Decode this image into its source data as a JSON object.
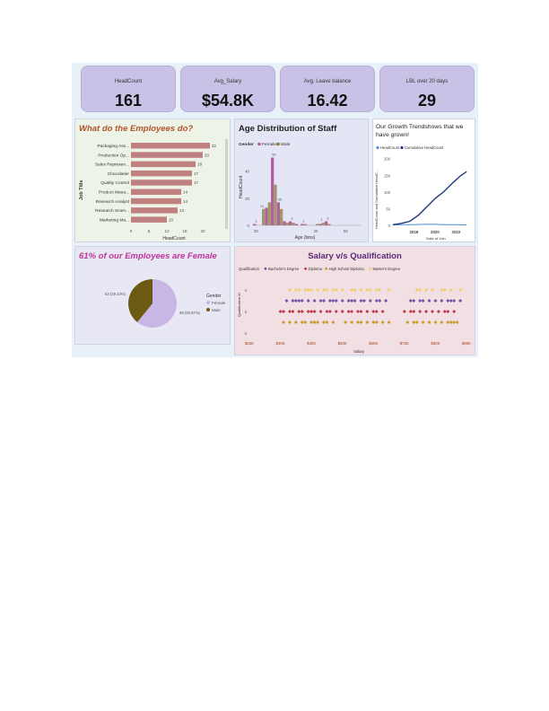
{
  "kpis": [
    {
      "label": "HeadCount",
      "value": "161"
    },
    {
      "label": "Avg_Salary",
      "value": "$54.8K"
    },
    {
      "label": "Avg. Leave balance",
      "value": "16.42"
    },
    {
      "label": "LBL over 20 days",
      "value": "29"
    }
  ],
  "colors": {
    "bar": "#c08080",
    "female": "#c8b7e6",
    "male": "#6b5a12",
    "male_bar": "#a3986a",
    "female_bar": "#b25fa0",
    "dot_bachelor": "#6b55a8",
    "dot_diploma": "#c0394b",
    "dot_highschool": "#c89a2a",
    "dot_masters": "#f0cf6a",
    "headcount_line": "#4a90d9",
    "cumulative_line": "#1f3a7a"
  },
  "chart_data": [
    {
      "type": "bar",
      "orientation": "horizontal",
      "title": "What do the Employees do?",
      "xlabel": "HeadCount",
      "ylabel": "Job Title",
      "categories": [
        "Packaging Ass...",
        "Production Op...",
        "Sales Represen...",
        "Chocolatier",
        "Quality Control",
        "Product Mana...",
        "Research Analyst",
        "Research Scien...",
        "Marketing Ma..."
      ],
      "values": [
        22,
        20,
        18,
        17,
        17,
        14,
        14,
        13,
        10
      ],
      "xticks": [
        "0",
        "5",
        "10",
        "15",
        "20"
      ],
      "xlim": [
        0,
        24
      ]
    },
    {
      "type": "bar",
      "title": "Age Distribution of Staff",
      "legend_title": "Gender",
      "xlabel": "Age (bins)",
      "ylabel": "HeadCount",
      "series": [
        {
          "name": "Female",
          "x": [
            20,
            22,
            24,
            26,
            28,
            30,
            32,
            34,
            36,
            38,
            40,
            42,
            44,
            46,
            48,
            50,
            52
          ],
          "values": [
            1,
            0,
            13,
            50,
            17,
            3,
            3,
            1,
            1,
            0,
            0,
            1,
            3,
            0,
            0,
            0,
            0
          ]
        },
        {
          "name": "Male",
          "x": [
            20,
            22,
            24,
            26,
            28,
            30,
            32,
            34,
            36,
            38,
            40,
            42,
            44,
            46,
            48,
            50,
            52
          ],
          "values": [
            0,
            12,
            17,
            30,
            12,
            2,
            2,
            0,
            1,
            0,
            1,
            2,
            1,
            0,
            0,
            0,
            0
          ]
        }
      ],
      "bar_labels": [
        "1",
        "12",
        "",
        "50",
        "30",
        "",
        "3",
        "",
        "1",
        "",
        "",
        "1",
        "3"
      ],
      "yticks": [
        "0",
        "20",
        "40"
      ],
      "xticks": [
        "20",
        "40",
        "50"
      ],
      "ylim": [
        0,
        55
      ],
      "xlim": [
        19,
        55
      ]
    },
    {
      "type": "line",
      "title": "Our Growth Trendshows that we have grown!",
      "xlabel": "Date of Join",
      "ylabel": "HeadCount and Cumulative HeadC...",
      "series": [
        {
          "name": "HeadCount",
          "x": [
            2016,
            2017,
            2018,
            2019,
            2020,
            2021,
            2022,
            2023
          ],
          "values": [
            1,
            2,
            2,
            3,
            3,
            2,
            2,
            1
          ]
        },
        {
          "name": "Cumulative HeadCount",
          "x": [
            2016,
            2016.8,
            2017.6,
            2018.4,
            2019.2,
            2020,
            2020.8,
            2021.6,
            2022.4,
            2023
          ],
          "values": [
            2,
            6,
            12,
            30,
            55,
            80,
            100,
            125,
            148,
            161
          ]
        }
      ],
      "xticks": [
        "2018",
        "2020",
        "2022"
      ],
      "yticks": [
        "0",
        "50",
        "100",
        "150",
        "200"
      ],
      "ylim": [
        0,
        210
      ],
      "xlim": [
        2016,
        2023.5
      ]
    },
    {
      "type": "pie",
      "title": "61% of our Employees are Female",
      "legend_title": "Gender",
      "labels": [
        "Female",
        "Male"
      ],
      "values": [
        98,
        63
      ],
      "slice_labels": [
        "98 (60.87%)",
        "63 (39.13%)"
      ]
    },
    {
      "type": "scatter",
      "title": "Salary v/s Qualification",
      "legend_title": "Qualification",
      "xlabel": "Salary",
      "ylabel": "Qualification ID",
      "legend": [
        "Bachelor's Degree",
        "Diploma",
        "High School Diploma",
        "Master's Degree"
      ],
      "xticks": [
        "$20K",
        "$30K",
        "$40K",
        "$50K",
        "$60K",
        "$70K",
        "$80K",
        "$90K"
      ],
      "yticks": [
        "0",
        "2",
        "4"
      ],
      "series": [
        {
          "name": "Master's Degree",
          "y": 4,
          "x": [
            33,
            35,
            36,
            38,
            39,
            40,
            42,
            44,
            45,
            47,
            48,
            50,
            53,
            54,
            56,
            58,
            59,
            61,
            62,
            65,
            74,
            75,
            77,
            79,
            82,
            83,
            85,
            88
          ]
        },
        {
          "name": "Bachelor's Degree",
          "y": 3,
          "x": [
            32,
            34,
            35,
            36,
            37,
            39,
            41,
            43,
            44,
            46,
            47,
            48,
            50,
            52,
            53,
            54,
            56,
            57,
            59,
            61,
            62,
            64,
            72,
            73,
            75,
            76,
            78,
            80,
            82,
            84,
            85,
            86,
            88
          ]
        },
        {
          "name": "Diploma",
          "y": 2,
          "x": [
            30,
            31,
            33,
            34,
            36,
            37,
            39,
            40,
            41,
            43,
            45,
            46,
            48,
            50,
            52,
            53,
            55,
            56,
            58,
            60,
            61,
            63,
            70,
            72,
            73,
            75,
            77,
            79,
            81,
            83,
            84,
            86
          ]
        },
        {
          "name": "High School Diploma",
          "y": 1,
          "x": [
            31,
            33,
            35,
            37,
            38,
            40,
            41,
            42,
            44,
            45,
            47,
            51,
            53,
            55,
            56,
            58,
            60,
            61,
            63,
            65,
            71,
            73,
            74,
            76,
            78,
            80,
            82,
            84,
            85,
            86,
            87
          ]
        }
      ],
      "xlim": [
        20,
        90
      ],
      "ylim": [
        0,
        4.5
      ]
    }
  ]
}
